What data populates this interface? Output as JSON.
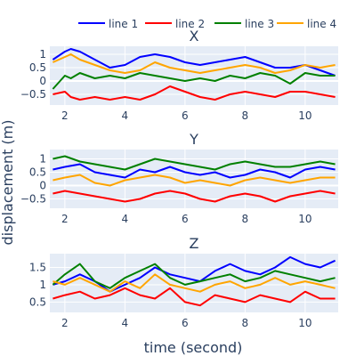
{
  "chart_data": {
    "type": "line",
    "xlabel": "time (second)",
    "ylabel": "displacement (m)",
    "legend": {
      "placement": "top",
      "entries": [
        "line 1",
        "line 2",
        "line 3",
        "line 4"
      ]
    },
    "x_range": [
      1.5,
      11.1
    ],
    "x_ticks": [
      2,
      4,
      6,
      8,
      10
    ],
    "grid": true,
    "colors": {
      "line 1": "#0000ff",
      "line 2": "#ff0000",
      "line 3": "#008000",
      "line 4": "#ffa500",
      "plot_bg": "#e5ecf6"
    },
    "subplots": [
      {
        "title": "X",
        "ylim": [
          -0.9,
          1.3
        ],
        "y_ticks": [
          1,
          0.5,
          0,
          -0.5
        ],
        "y_tick_labels": [
          "1",
          "0.5",
          "0",
          "−0.5"
        ],
        "x": [
          1.6,
          2.0,
          2.2,
          2.5,
          3.0,
          3.5,
          4.0,
          4.5,
          5.0,
          5.5,
          6.0,
          6.5,
          7.0,
          7.5,
          8.0,
          8.5,
          9.0,
          9.5,
          10.0,
          10.5,
          11.0
        ],
        "series": [
          {
            "name": "line 1",
            "values": [
              0.8,
              1.1,
              1.2,
              1.1,
              0.8,
              0.5,
              0.6,
              0.9,
              1.0,
              0.9,
              0.7,
              0.6,
              0.7,
              0.8,
              0.9,
              0.7,
              0.5,
              0.5,
              0.6,
              0.4,
              0.2
            ]
          },
          {
            "name": "line 2",
            "values": [
              -0.5,
              -0.4,
              -0.6,
              -0.7,
              -0.6,
              -0.7,
              -0.6,
              -0.7,
              -0.5,
              -0.2,
              -0.4,
              -0.6,
              -0.7,
              -0.5,
              -0.4,
              -0.5,
              -0.6,
              -0.4,
              -0.4,
              -0.5,
              -0.6
            ]
          },
          {
            "name": "line 3",
            "values": [
              -0.3,
              0.2,
              0.1,
              0.3,
              0.1,
              0.2,
              0.1,
              0.3,
              0.2,
              0.1,
              0.0,
              0.1,
              0.0,
              0.2,
              0.1,
              0.3,
              0.2,
              -0.1,
              0.3,
              0.2,
              0.2
            ]
          },
          {
            "name": "line 4",
            "values": [
              0.7,
              0.9,
              1.0,
              0.8,
              0.6,
              0.4,
              0.3,
              0.4,
              0.7,
              0.5,
              0.4,
              0.3,
              0.4,
              0.5,
              0.6,
              0.5,
              0.3,
              0.4,
              0.6,
              0.5,
              0.6
            ]
          }
        ]
      },
      {
        "title": "Y",
        "ylim": [
          -0.85,
          1.35
        ],
        "y_ticks": [
          1,
          0.5,
          0,
          -0.5
        ],
        "y_tick_labels": [
          "1",
          "0.5",
          "0",
          "−0.5"
        ],
        "x": [
          1.6,
          2.0,
          2.5,
          3.0,
          3.5,
          4.0,
          4.5,
          5.0,
          5.5,
          6.0,
          6.5,
          7.0,
          7.5,
          8.0,
          8.5,
          9.0,
          9.5,
          10.0,
          10.5,
          11.0
        ],
        "series": [
          {
            "name": "line 1",
            "values": [
              0.6,
              0.7,
              0.8,
              0.5,
              0.4,
              0.3,
              0.6,
              0.5,
              0.7,
              0.5,
              0.4,
              0.5,
              0.3,
              0.4,
              0.6,
              0.5,
              0.3,
              0.6,
              0.7,
              0.6
            ]
          },
          {
            "name": "line 2",
            "values": [
              -0.3,
              -0.2,
              -0.3,
              -0.4,
              -0.5,
              -0.6,
              -0.5,
              -0.3,
              -0.2,
              -0.3,
              -0.5,
              -0.6,
              -0.4,
              -0.3,
              -0.4,
              -0.6,
              -0.4,
              -0.3,
              -0.2,
              -0.3
            ]
          },
          {
            "name": "line 3",
            "values": [
              1.0,
              1.1,
              0.9,
              0.8,
              0.7,
              0.6,
              0.8,
              1.0,
              0.9,
              0.8,
              0.7,
              0.6,
              0.8,
              0.9,
              0.8,
              0.7,
              0.7,
              0.8,
              0.9,
              0.8
            ]
          },
          {
            "name": "line 4",
            "values": [
              0.2,
              0.3,
              0.4,
              0.1,
              0.0,
              0.2,
              0.3,
              0.4,
              0.3,
              0.1,
              0.2,
              0.1,
              0.0,
              0.2,
              0.3,
              0.2,
              0.1,
              0.2,
              0.3,
              0.3
            ]
          }
        ]
      },
      {
        "title": "Z",
        "ylim": [
          0.2,
          1.9
        ],
        "y_ticks": [
          1.5,
          1,
          0.5
        ],
        "y_tick_labels": [
          "1.5",
          "1",
          "0.5"
        ],
        "x": [
          1.6,
          2.0,
          2.5,
          3.0,
          3.5,
          4.0,
          4.5,
          5.0,
          5.5,
          6.0,
          6.5,
          7.0,
          7.5,
          8.0,
          8.5,
          9.0,
          9.5,
          10.0,
          10.5,
          11.0
        ],
        "series": [
          {
            "name": "line 1",
            "values": [
              1.0,
              1.1,
              1.3,
              1.1,
              0.8,
              1.0,
              1.2,
              1.5,
              1.3,
              1.2,
              1.1,
              1.4,
              1.6,
              1.4,
              1.3,
              1.5,
              1.8,
              1.6,
              1.5,
              1.7
            ]
          },
          {
            "name": "line 2",
            "values": [
              0.6,
              0.7,
              0.8,
              0.6,
              0.7,
              0.9,
              0.7,
              0.6,
              0.9,
              0.5,
              0.4,
              0.7,
              0.6,
              0.5,
              0.7,
              0.6,
              0.5,
              0.8,
              0.6,
              0.6
            ]
          },
          {
            "name": "line 3",
            "values": [
              1.0,
              1.3,
              1.6,
              1.1,
              0.9,
              1.2,
              1.4,
              1.6,
              1.2,
              1.0,
              1.1,
              1.2,
              1.3,
              1.1,
              1.2,
              1.4,
              1.3,
              1.2,
              1.1,
              1.2
            ]
          },
          {
            "name": "line 4",
            "values": [
              1.1,
              1.0,
              1.2,
              1.0,
              0.8,
              1.1,
              0.9,
              1.3,
              1.0,
              0.9,
              0.8,
              1.0,
              1.1,
              0.9,
              1.0,
              1.2,
              1.0,
              1.1,
              1.0,
              0.9
            ]
          }
        ]
      }
    ]
  }
}
